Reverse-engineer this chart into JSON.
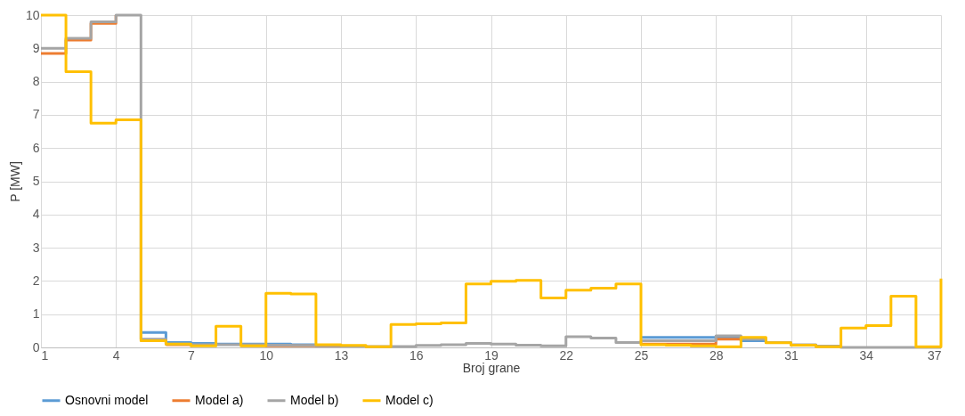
{
  "chart_data": {
    "type": "step",
    "xlabel": "Broj grane",
    "ylabel": "P [MW]",
    "x": [
      1,
      2,
      3,
      4,
      5,
      6,
      7,
      8,
      9,
      10,
      11,
      12,
      13,
      14,
      15,
      16,
      17,
      18,
      19,
      20,
      21,
      22,
      23,
      24,
      25,
      26,
      27,
      28,
      29,
      30,
      31,
      32,
      33,
      34,
      35,
      36,
      37
    ],
    "xlim": [
      1,
      37
    ],
    "xticks": [
      1,
      4,
      7,
      10,
      13,
      16,
      19,
      22,
      25,
      28,
      31,
      34,
      37
    ],
    "ylim": [
      0,
      10
    ],
    "yticks": [
      0,
      1,
      2,
      3,
      4,
      5,
      6,
      7,
      8,
      9,
      10
    ],
    "grid": true,
    "legend": "bottom",
    "line_style": "solid",
    "marker": "none",
    "series": [
      {
        "name": "Osnovni model",
        "color": "#5b9bd5",
        "values": [
          null,
          null,
          null,
          null,
          0.45,
          0.15,
          0.12,
          0.1,
          0.1,
          0.1,
          0.08,
          0.06,
          null,
          null,
          null,
          null,
          null,
          null,
          null,
          null,
          null,
          null,
          null,
          null,
          0.3,
          0.3,
          0.3,
          0.3,
          0.2,
          0.15,
          null,
          null,
          null,
          null,
          null,
          null,
          null
        ]
      },
      {
        "name": "Model a)",
        "color": "#ed7d31",
        "values": [
          8.85,
          9.25,
          9.75,
          10,
          null,
          0.08,
          0.06,
          null,
          0.06,
          0.05,
          0.05,
          0.04,
          0.03,
          null,
          null,
          null,
          null,
          null,
          null,
          null,
          null,
          null,
          null,
          null,
          0.1,
          0.1,
          0.1,
          0.25,
          0.25,
          null,
          null,
          null,
          null,
          null,
          null,
          null,
          null
        ]
      },
      {
        "name": "Model b)",
        "color": "#a5a5a5",
        "values": [
          9.0,
          9.3,
          9.8,
          10,
          0.25,
          0.1,
          0.08,
          0.08,
          0.08,
          0.07,
          0.06,
          0.05,
          0.04,
          0.03,
          0.03,
          0.06,
          0.08,
          0.12,
          0.1,
          0.07,
          0.05,
          0.32,
          0.28,
          0.15,
          0.2,
          0.2,
          0.2,
          0.35,
          0.25,
          0.15,
          0.08,
          0.04,
          0,
          0,
          0,
          0,
          0
        ]
      },
      {
        "name": "Model c)",
        "color": "#ffc000",
        "values": [
          10,
          8.3,
          6.75,
          6.85,
          0.2,
          0.1,
          0.05,
          0.64,
          0.05,
          1.63,
          1.61,
          0.08,
          0.06,
          0.02,
          0.69,
          0.71,
          0.74,
          1.91,
          1.99,
          2.02,
          1.49,
          1.72,
          1.78,
          1.91,
          0.08,
          0.07,
          0.05,
          0.02,
          0.3,
          0.14,
          0.07,
          0.02,
          0.58,
          0.66,
          1.54,
          0.02,
          2.07
        ]
      }
    ]
  }
}
